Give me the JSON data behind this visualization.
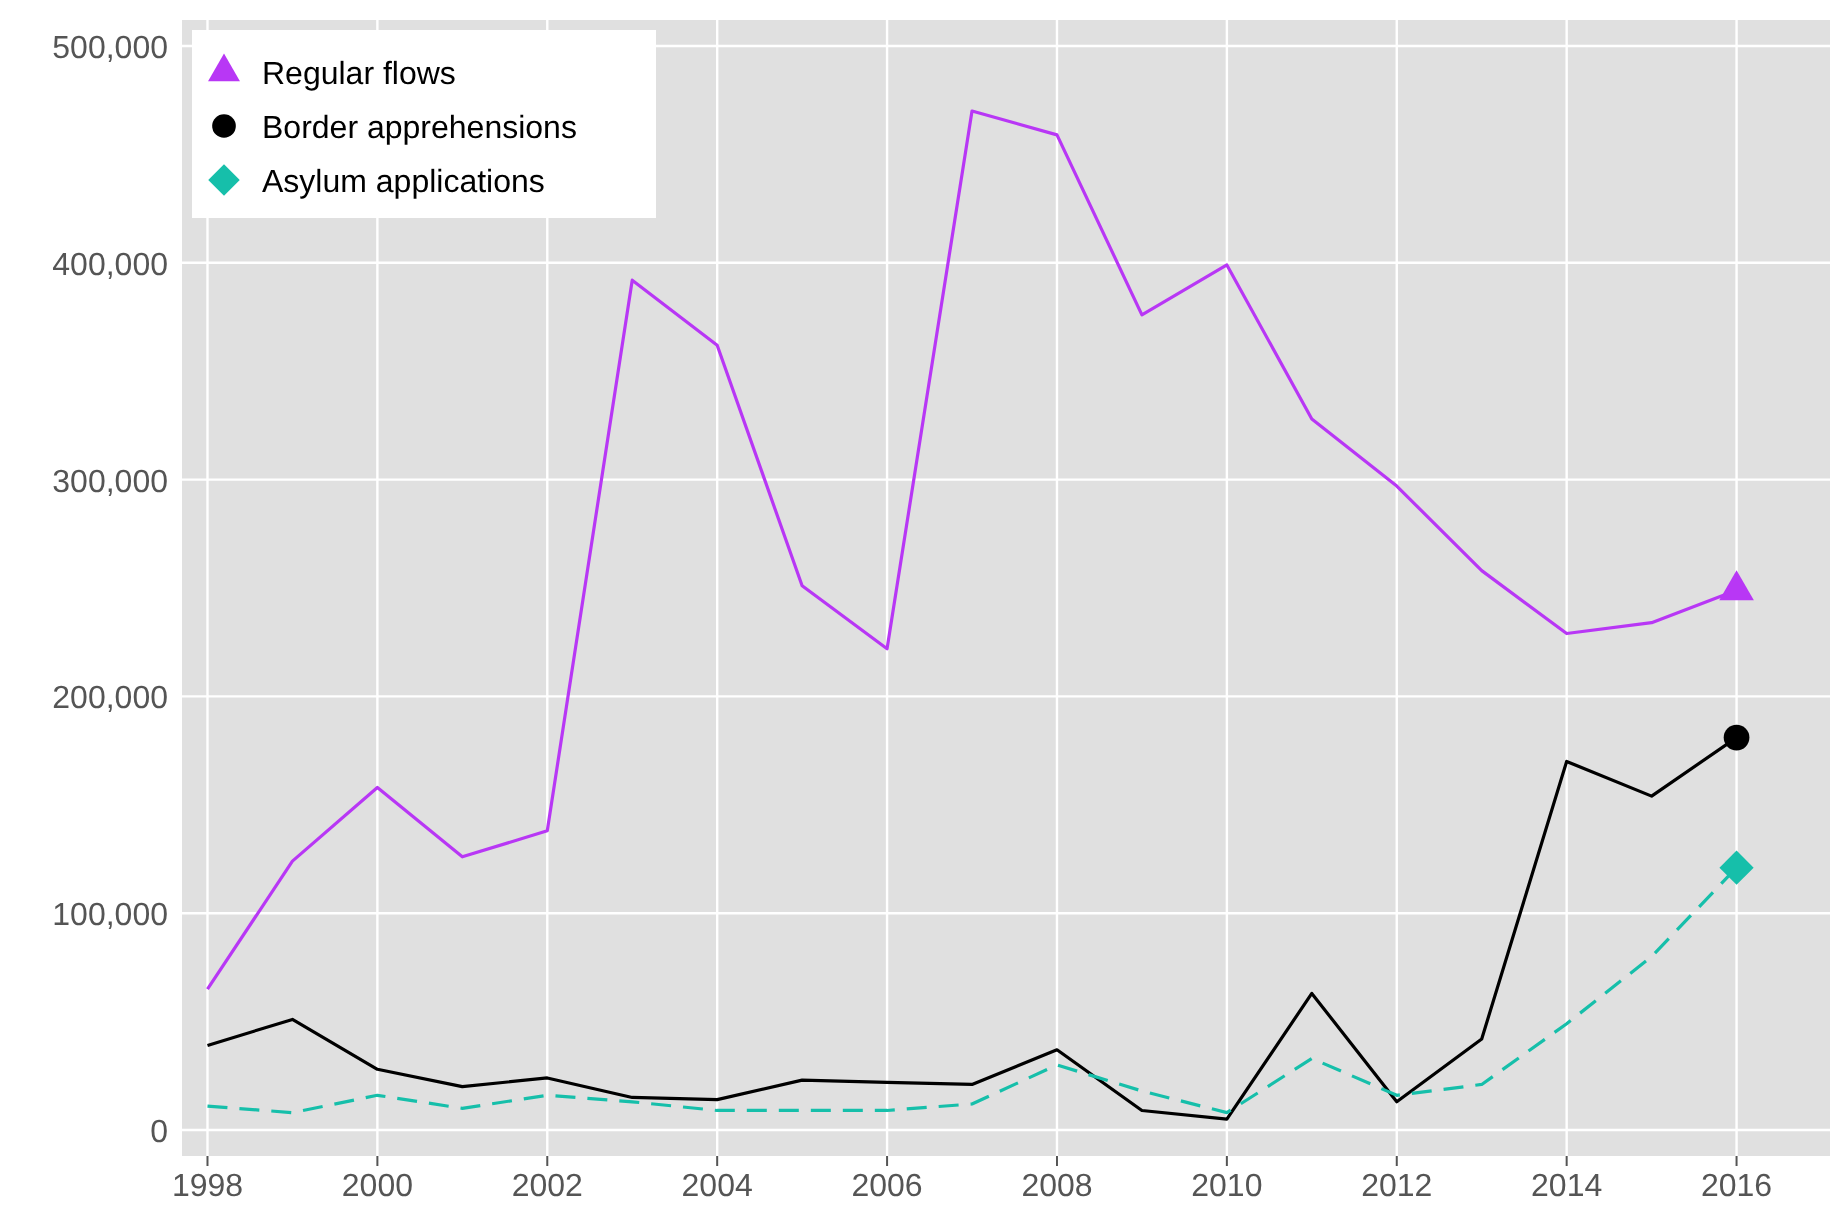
{
  "chart_data": {
    "type": "line",
    "x": [
      1998,
      1999,
      2000,
      2001,
      2002,
      2003,
      2004,
      2005,
      2006,
      2007,
      2008,
      2009,
      2010,
      2011,
      2012,
      2013,
      2014,
      2015,
      2016
    ],
    "series": [
      {
        "color": "#b837f5",
        "line_style": "solid",
        "values": [
          65000,
          124000,
          158000,
          126000,
          138000,
          392000,
          362000,
          251000,
          222000,
          470000,
          459000,
          376000,
          399000,
          328000,
          297000,
          258000,
          229000,
          234000,
          249000
        ]
      },
      {
        "color": "#000000",
        "line_style": "solid",
        "values": [
          39000,
          51000,
          28000,
          20000,
          24000,
          15000,
          14000,
          23000,
          22000,
          21000,
          37000,
          9000,
          5000,
          63000,
          13000,
          42000,
          170000,
          154000,
          181000
        ]
      },
      {
        "color": "#16bfaa",
        "line_style": "dashed",
        "values": [
          11000,
          8000,
          16000,
          10000,
          16000,
          13000,
          9000,
          9000,
          9000,
          12000,
          30000,
          18000,
          8000,
          33000,
          16000,
          21000,
          49000,
          80000,
          121000
        ]
      },
      {
        "type": "scatter",
        "name": "Regular flows",
        "color": "#b837f5",
        "marker": "triangle",
        "values": [
          null,
          null,
          null,
          null,
          null,
          null,
          null,
          null,
          null,
          null,
          null,
          null,
          null,
          null,
          null,
          null,
          null,
          null,
          249000
        ]
      },
      {
        "type": "scatter",
        "name": "Border apprehensions",
        "color": "#000000",
        "marker": "circle",
        "values": [
          null,
          null,
          null,
          null,
          null,
          null,
          null,
          null,
          null,
          null,
          null,
          null,
          null,
          null,
          null,
          null,
          null,
          null,
          181000
        ]
      },
      {
        "type": "scatter",
        "name": "Asylum applications",
        "color": "#16bfaa",
        "marker": "diamond",
        "values": [
          null,
          null,
          null,
          null,
          null,
          null,
          null,
          null,
          null,
          null,
          null,
          null,
          null,
          null,
          null,
          null,
          null,
          null,
          121000
        ]
      }
    ],
    "xlim": [
      1997.7,
      2017.1
    ],
    "xticks": [
      1998,
      2000,
      2002,
      2004,
      2006,
      2008,
      2010,
      2012,
      2014,
      2016
    ],
    "ylim": [
      -12000,
      512000
    ],
    "yticks": [
      {
        "value": 0,
        "label": "0"
      },
      {
        "value": 100000,
        "label": "100,000"
      },
      {
        "value": 200000,
        "label": "200,000"
      },
      {
        "value": 300000,
        "label": "300,000"
      },
      {
        "value": 400000,
        "label": "400,000"
      },
      {
        "value": 500000,
        "label": "500,000"
      }
    ],
    "grid": true,
    "legend": "top left"
  }
}
